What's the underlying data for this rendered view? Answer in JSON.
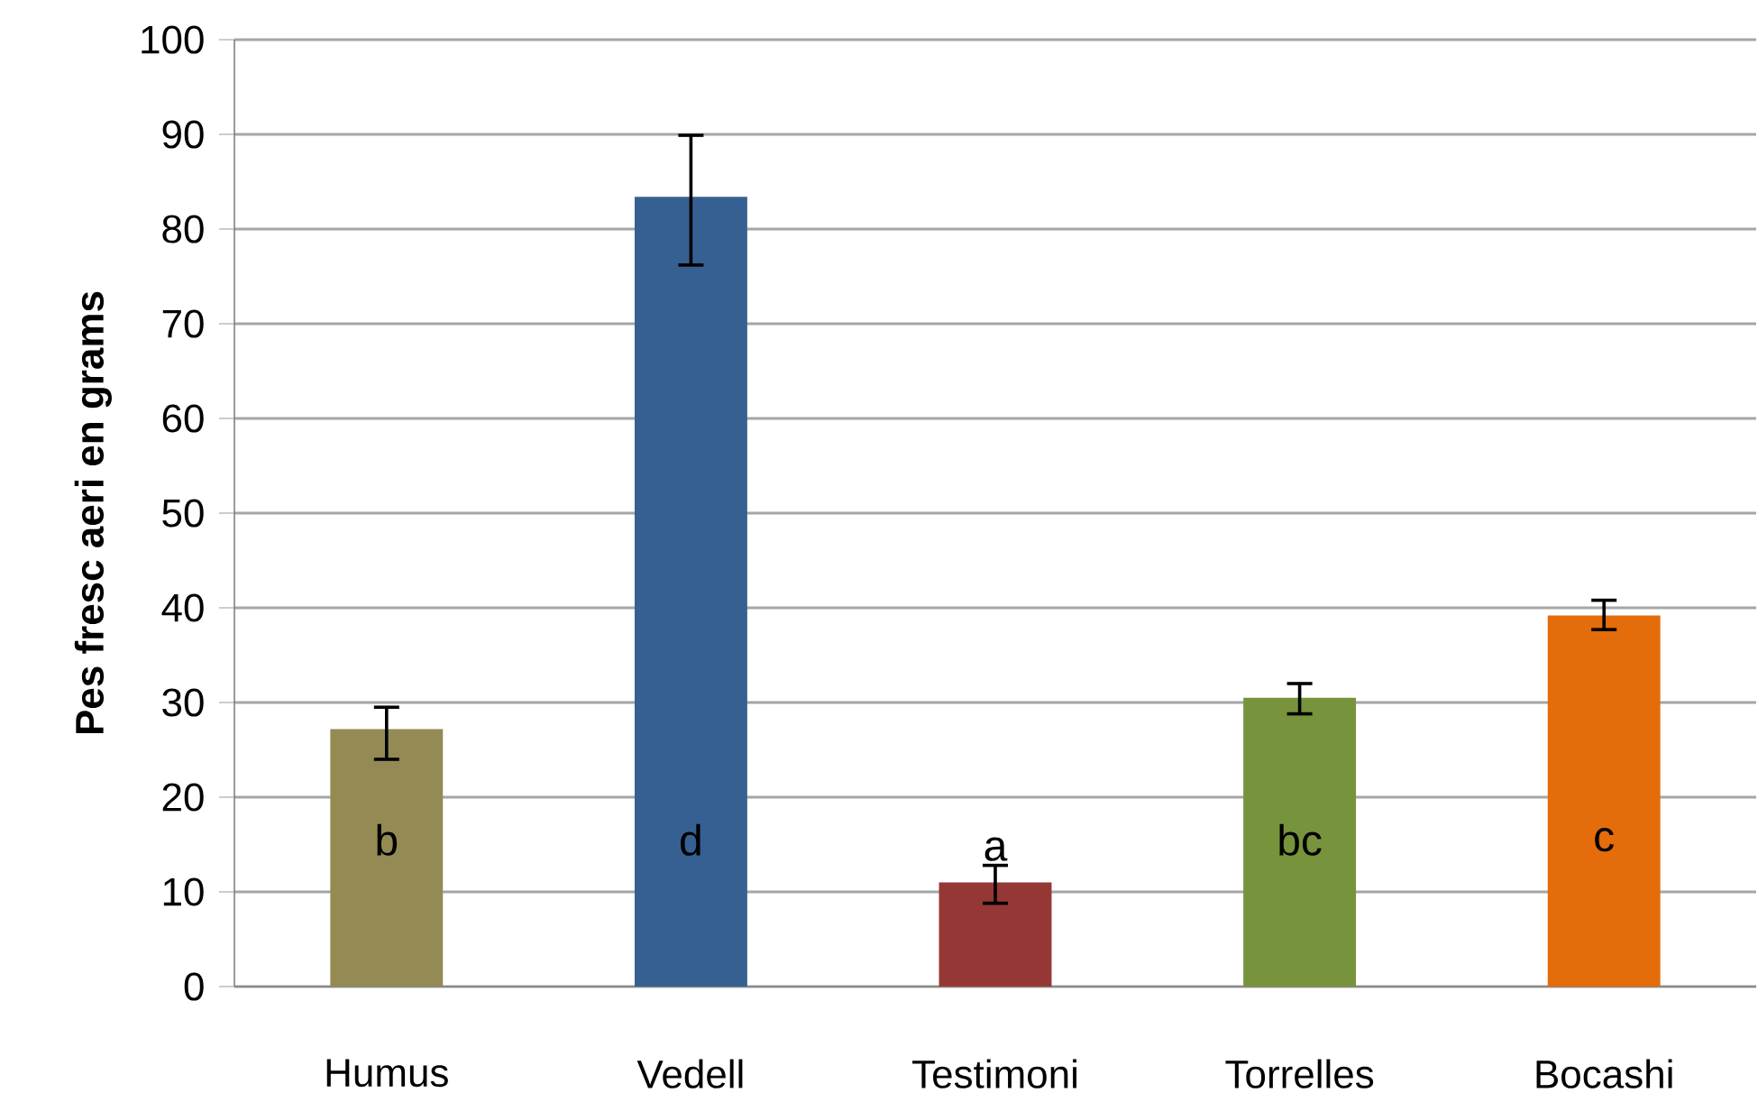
{
  "chart_data": {
    "type": "bar",
    "ylabel": "**Pes fresc aeri en grams**",
    "categories": [
      "Humus",
      "Vedell",
      "Testimoni",
      "Torrelles",
      "Bocashi"
    ],
    "values": [
      27.2,
      83.4,
      11.0,
      30.5,
      39.2
    ],
    "colors": [
      "#948a54",
      "#366092",
      "#953735",
      "#77933c",
      "#e46c0a"
    ],
    "errors": [
      [
        24.0,
        29.5
      ],
      [
        76.2,
        89.9
      ],
      [
        8.8,
        12.8
      ],
      [
        28.8,
        32.0
      ],
      [
        37.7,
        40.8
      ]
    ],
    "annotations": [
      "b",
      "d",
      "a",
      "bc",
      "c"
    ],
    "ylim": [
      0,
      100
    ],
    "yticks": [
      0,
      10,
      20,
      30,
      40,
      50,
      60,
      70,
      80,
      90,
      100
    ],
    "grid": "y"
  }
}
